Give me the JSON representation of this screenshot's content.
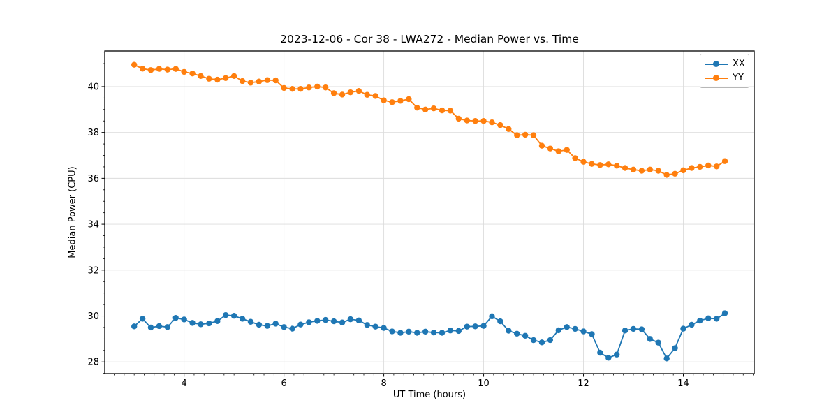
{
  "chart_data": {
    "type": "line",
    "title": "2023-12-06 - Cor 38 - LWA272 - Median Power vs. Time",
    "xlabel": "UT Time (hours)",
    "ylabel": "Median Power (CPU)",
    "xlim": [
      2.41,
      15.42
    ],
    "ylim": [
      27.49,
      41.55
    ],
    "xticks": [
      4,
      6,
      8,
      10,
      12,
      14
    ],
    "yticks": [
      28,
      30,
      32,
      34,
      36,
      38,
      40
    ],
    "x_minor_step": 0.2,
    "y_minor_step": 0.5,
    "grid": true,
    "legend_position": "upper right",
    "background_color": "#ffffff",
    "grid_color": "#dcdcdc",
    "x": [
      3.0,
      3.167,
      3.333,
      3.5,
      3.667,
      3.833,
      4.0,
      4.167,
      4.333,
      4.5,
      4.667,
      4.833,
      5.0,
      5.167,
      5.333,
      5.5,
      5.667,
      5.833,
      6.0,
      6.167,
      6.333,
      6.5,
      6.667,
      6.833,
      7.0,
      7.167,
      7.333,
      7.5,
      7.667,
      7.833,
      8.0,
      8.167,
      8.333,
      8.5,
      8.667,
      8.833,
      9.0,
      9.167,
      9.333,
      9.5,
      9.667,
      9.833,
      10.0,
      10.167,
      10.333,
      10.5,
      10.667,
      10.833,
      11.0,
      11.167,
      11.333,
      11.5,
      11.667,
      11.833,
      12.0,
      12.167,
      12.333,
      12.5,
      12.667,
      12.833,
      13.0,
      13.167,
      13.333,
      13.5,
      13.667,
      13.833,
      14.0,
      14.167,
      14.333,
      14.5,
      14.667,
      14.833
    ],
    "series": [
      {
        "name": "XX",
        "color": "#1f77b4",
        "values": [
          29.55,
          29.88,
          29.5,
          29.56,
          29.52,
          29.92,
          29.85,
          29.7,
          29.64,
          29.68,
          29.78,
          30.04,
          30.01,
          29.88,
          29.75,
          29.62,
          29.57,
          29.67,
          29.52,
          29.45,
          29.63,
          29.73,
          29.79,
          29.83,
          29.77,
          29.72,
          29.86,
          29.81,
          29.61,
          29.54,
          29.48,
          29.33,
          29.27,
          29.32,
          29.27,
          29.32,
          29.28,
          29.27,
          29.37,
          29.35,
          29.54,
          29.55,
          29.57,
          29.99,
          29.77,
          29.36,
          29.23,
          29.14,
          28.95,
          28.85,
          28.95,
          29.38,
          29.52,
          29.44,
          29.33,
          29.21,
          28.4,
          28.18,
          28.32,
          29.37,
          29.44,
          29.42,
          29.0,
          28.84,
          28.15,
          28.6,
          29.45,
          29.62,
          29.8,
          29.9,
          29.88,
          30.12
        ]
      },
      {
        "name": "YY",
        "color": "#ff7f0e",
        "values": [
          40.95,
          40.78,
          40.72,
          40.77,
          40.74,
          40.77,
          40.64,
          40.57,
          40.46,
          40.34,
          40.3,
          40.37,
          40.46,
          40.24,
          40.17,
          40.22,
          40.28,
          40.27,
          39.94,
          39.9,
          39.9,
          39.96,
          40.0,
          39.96,
          39.71,
          39.65,
          39.75,
          39.81,
          39.64,
          39.59,
          39.4,
          39.32,
          39.38,
          39.45,
          39.08,
          39.0,
          39.05,
          38.96,
          38.95,
          38.6,
          38.52,
          38.5,
          38.5,
          38.44,
          38.32,
          38.15,
          37.88,
          37.9,
          37.88,
          37.42,
          37.3,
          37.18,
          37.24,
          36.88,
          36.72,
          36.63,
          36.58,
          36.61,
          36.55,
          36.45,
          36.38,
          36.33,
          36.38,
          36.33,
          36.15,
          36.2,
          36.35,
          36.45,
          36.5,
          36.56,
          36.52,
          36.75
        ]
      }
    ]
  }
}
